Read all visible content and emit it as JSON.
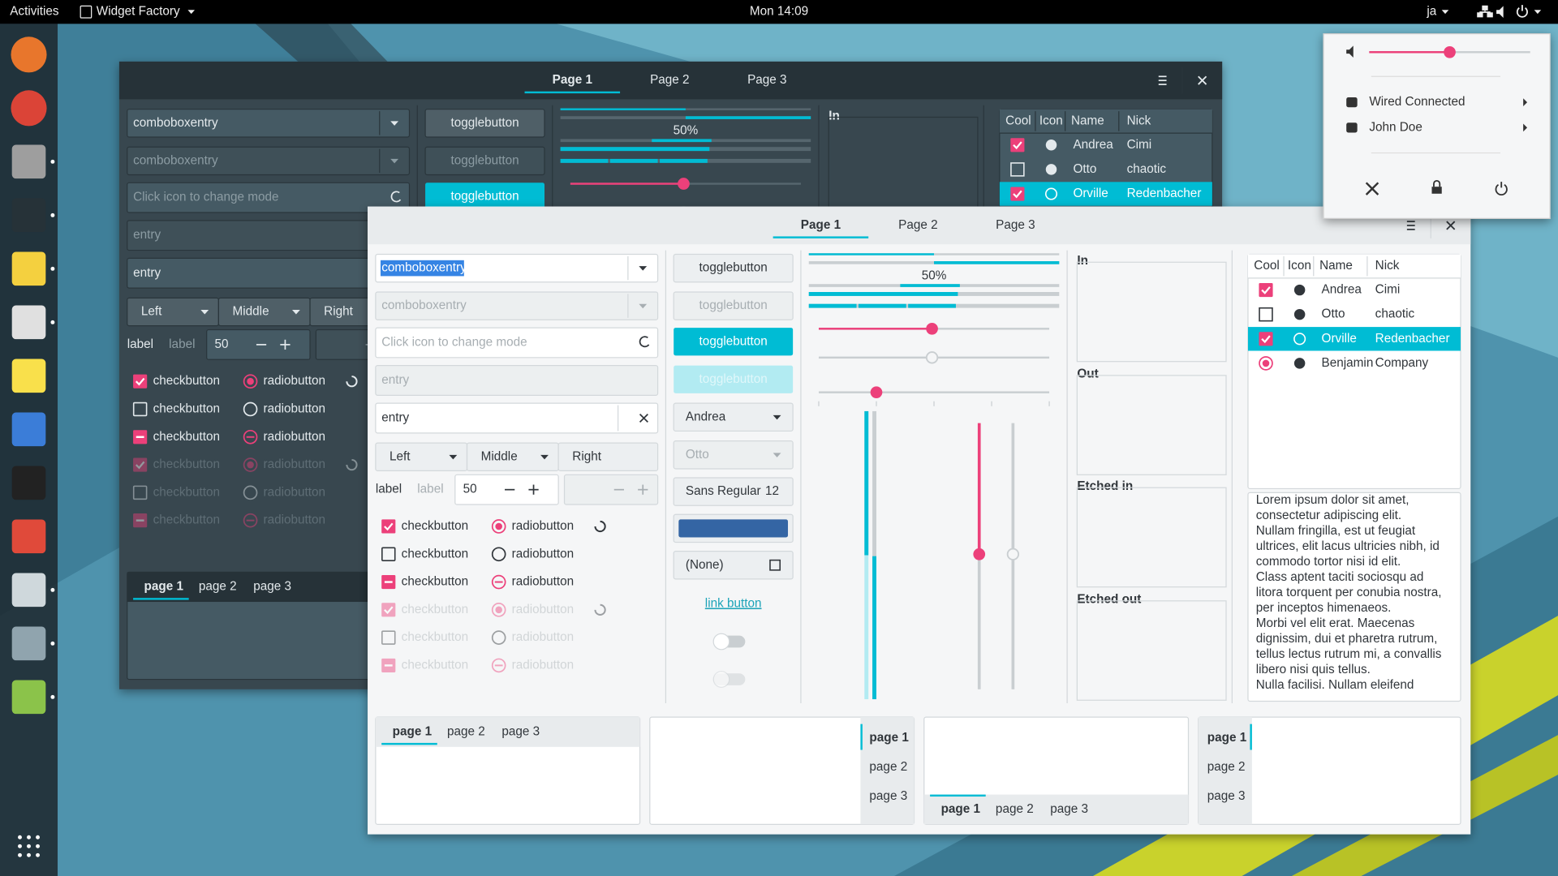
{
  "topbar": {
    "activities": "Activities",
    "app": "Widget Factory",
    "clock": "Mon 14:09",
    "lang": "ja"
  },
  "system_menu": {
    "items": [
      "Wired Connected",
      "John Doe"
    ]
  },
  "windows": [
    {
      "tabs": [
        "Page 1",
        "Page 2",
        "Page 3"
      ],
      "combos": [
        "comboboxentry",
        "comboboxentry"
      ],
      "mode_entry": "Click icon to change mode",
      "entries": [
        "entry",
        "entry"
      ],
      "buttons": [
        "Left",
        "Middle",
        "Right"
      ],
      "labels": [
        "label",
        "label"
      ],
      "spin": "50",
      "checks": [
        "checkbutton",
        "checkbutton",
        "checkbutton",
        "checkbutton",
        "checkbutton",
        "checkbutton"
      ],
      "radios": [
        "radiobutton",
        "radiobutton",
        "radiobutton",
        "radiobutton",
        "radiobutton",
        "radiobutton"
      ],
      "toggles": [
        "togglebutton",
        "togglebutton",
        "togglebutton"
      ],
      "progress": "50%",
      "frames": [
        "In"
      ],
      "tree_headers": [
        "Cool",
        "Icon",
        "Name",
        "Nick"
      ],
      "tree_rows": [
        [
          "Andrea",
          "Cimi"
        ],
        [
          "Otto",
          "chaotic"
        ],
        [
          "Orville",
          "Redenbacher"
        ]
      ],
      "notebooks": [
        [
          "page 1",
          "page 2",
          "page 3"
        ]
      ]
    },
    {
      "tabs": [
        "Page 1",
        "Page 2",
        "Page 3"
      ],
      "combos": [
        "comboboxentry",
        "comboboxentry"
      ],
      "mode_entry": "Click icon to change mode",
      "entries": [
        "entry",
        "entry"
      ],
      "buttons": [
        "Left",
        "Middle",
        "Right"
      ],
      "labels": [
        "label",
        "label"
      ],
      "spin": "50",
      "checks": [
        "checkbutton",
        "checkbutton",
        "checkbutton",
        "checkbutton",
        "checkbutton",
        "checkbutton"
      ],
      "radios": [
        "radiobutton",
        "radiobutton",
        "radiobutton",
        "radiobutton",
        "radiobutton",
        "radiobutton"
      ],
      "toggles": [
        "togglebutton",
        "togglebutton",
        "togglebutton",
        "togglebutton"
      ],
      "dropdowns": [
        "Andrea",
        "Otto"
      ],
      "font": [
        "Sans Regular",
        "12"
      ],
      "file": "(None)",
      "link": "link button",
      "progress": "50%",
      "frames": [
        "In",
        "Out",
        "Etched in",
        "Etched out"
      ],
      "tree_headers": [
        "Cool",
        "Icon",
        "Name",
        "Nick"
      ],
      "tree_rows": [
        [
          "Andrea",
          "Cimi"
        ],
        [
          "Otto",
          "chaotic"
        ],
        [
          "Orville",
          "Redenbacher"
        ],
        [
          "Benjamin",
          "Company"
        ]
      ],
      "text_view": [
        "Lorem ipsum dolor sit amet,",
        "consectetur adipiscing elit.",
        "Nullam fringilla, est ut feugiat",
        "ultrices, elit lacus ultricies nibh, id",
        "commodo tortor nisi id elit.",
        "Class aptent taciti sociosqu ad",
        "litora torquent per conubia nostra,",
        "per inceptos himenaeos.",
        "Morbi vel elit erat. Maecenas",
        "dignissim, dui et pharetra rutrum,",
        "tellus lectus rutrum mi, a convallis",
        "libero nisi quis tellus.",
        "Nulla facilisi. Nullam eleifend"
      ],
      "notebooks": [
        [
          "page 1",
          "page 2",
          "page 3"
        ],
        [
          "page 1",
          "page 2",
          "page 3"
        ],
        [
          "page 1",
          "page 2",
          "page 3"
        ],
        [
          "page 1",
          "page 2",
          "page 3"
        ]
      ]
    }
  ]
}
